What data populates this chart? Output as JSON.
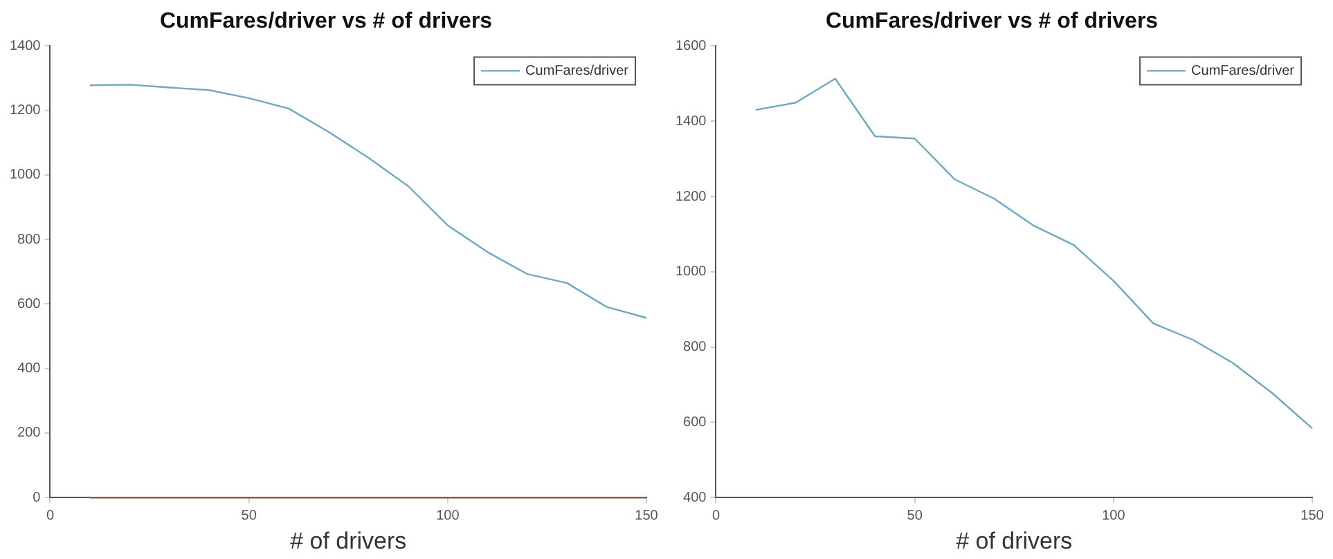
{
  "chart_data": [
    {
      "type": "line",
      "title": "CumFares/driver vs # of drivers",
      "xlabel": "# of drivers",
      "x": [
        10,
        20,
        30,
        40,
        50,
        60,
        70,
        80,
        90,
        100,
        110,
        120,
        130,
        140,
        150
      ],
      "series": [
        {
          "name": "CumFares/driver",
          "color": "#6fa8c0",
          "values": [
            1278,
            1280,
            1271,
            1263,
            1238,
            1206,
            1134,
            1054,
            966,
            844,
            761,
            693,
            665,
            591,
            557
          ]
        },
        {
          "color": "#a0522d",
          "values": [
            0,
            0,
            0,
            0,
            0,
            0,
            0,
            0,
            0,
            0,
            0,
            0,
            0,
            0,
            0
          ]
        }
      ],
      "xlim": [
        0,
        150
      ],
      "xticks": [
        0,
        50,
        100,
        150
      ],
      "ylim": [
        0,
        1400
      ],
      "yticks": [
        0,
        200,
        400,
        600,
        800,
        1000,
        1200,
        1400
      ],
      "grid": false,
      "legend": "top right",
      "marker": "none",
      "line_style": "solid"
    },
    {
      "type": "line",
      "title": "CumFares/driver vs # of drivers",
      "xlabel": "# of drivers",
      "x": [
        10,
        20,
        30,
        40,
        50,
        60,
        70,
        80,
        90,
        100,
        110,
        120,
        130,
        140,
        150
      ],
      "series": [
        {
          "name": "CumFares/driver",
          "color": "#6fa8c0",
          "values": [
            1430,
            1449,
            1513,
            1360,
            1354,
            1246,
            1194,
            1122,
            1071,
            976,
            863,
            819,
            758,
            677,
            584
          ]
        }
      ],
      "xlim": [
        0,
        150
      ],
      "xticks": [
        0,
        50,
        100,
        150
      ],
      "ylim": [
        400,
        1600
      ],
      "yticks": [
        400,
        600,
        800,
        1000,
        1200,
        1400,
        1600
      ],
      "grid": false,
      "legend": "top right",
      "marker": "none",
      "line_style": "solid"
    }
  ]
}
